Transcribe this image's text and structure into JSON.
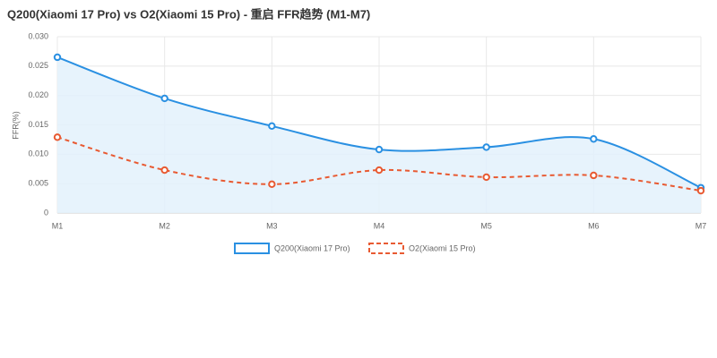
{
  "chart_data": {
    "type": "line",
    "title": "Q200(Xiaomi 17 Pro) vs O2(Xiaomi 15 Pro) - 重启 FFR趋势 (M1-M7)",
    "y_label": "FFR(%)",
    "categories": [
      "M1",
      "M2",
      "M3",
      "M4",
      "M5",
      "M6",
      "M7"
    ],
    "series": [
      {
        "name": "Q200(Xiaomi 17 Pro)",
        "color": "#2a90e2",
        "dashed": false,
        "fill": "#e3f1fc",
        "values": [
          0.0265,
          0.0195,
          0.0148,
          0.0108,
          0.0112,
          0.0126,
          0.0043
        ]
      },
      {
        "name": "O2(Xiaomi 15 Pro)",
        "color": "#e85a32",
        "dashed": true,
        "values": [
          0.0129,
          0.0073,
          0.0049,
          0.0073,
          0.0061,
          0.0064,
          0.0038
        ]
      }
    ],
    "ylim": [
      0,
      0.03
    ],
    "yticks": [
      0,
      0.005,
      {
        "value": 0.01,
        "label": "0.010"
      },
      0.015,
      {
        "value": 0.02,
        "label": "0.020"
      },
      0.025,
      {
        "value": 0.03,
        "label": "0.030"
      }
    ],
    "grid": true,
    "legend": "bottom"
  }
}
